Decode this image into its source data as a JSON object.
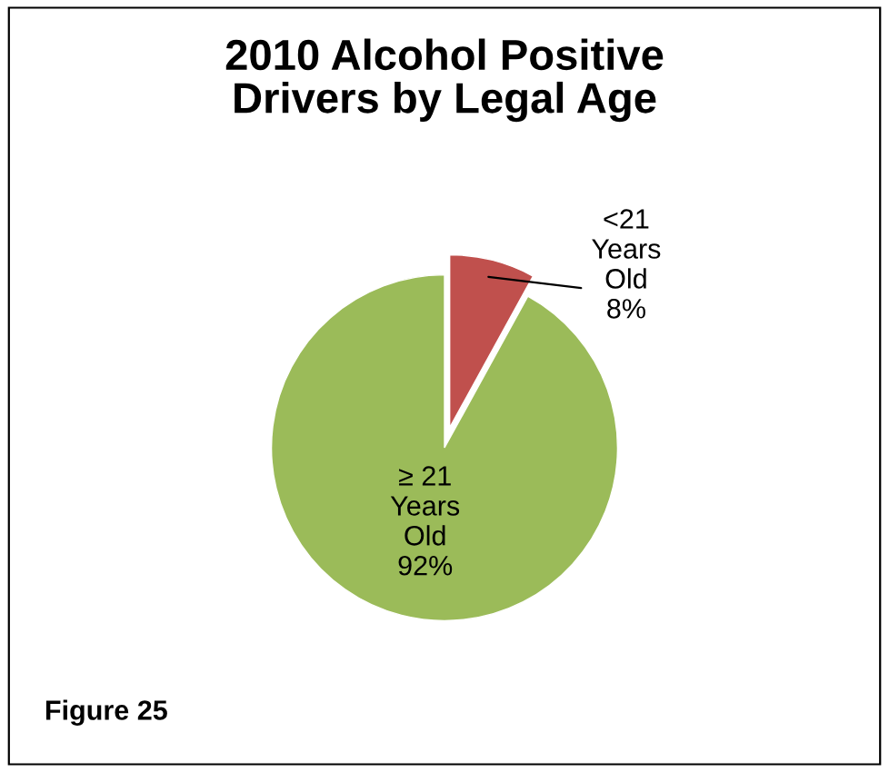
{
  "chart_data": {
    "type": "pie",
    "title": "2010 Alcohol Positive Drivers by Legal Age",
    "categories": [
      "<21 Years Old",
      "≥ 21 Years Old"
    ],
    "values": [
      8,
      92
    ],
    "value_labels": [
      "8%",
      "92%"
    ],
    "colors": [
      "#c0504d",
      "#9bbb59"
    ],
    "legend": false,
    "annotations": [
      "Figure 25"
    ]
  }
}
